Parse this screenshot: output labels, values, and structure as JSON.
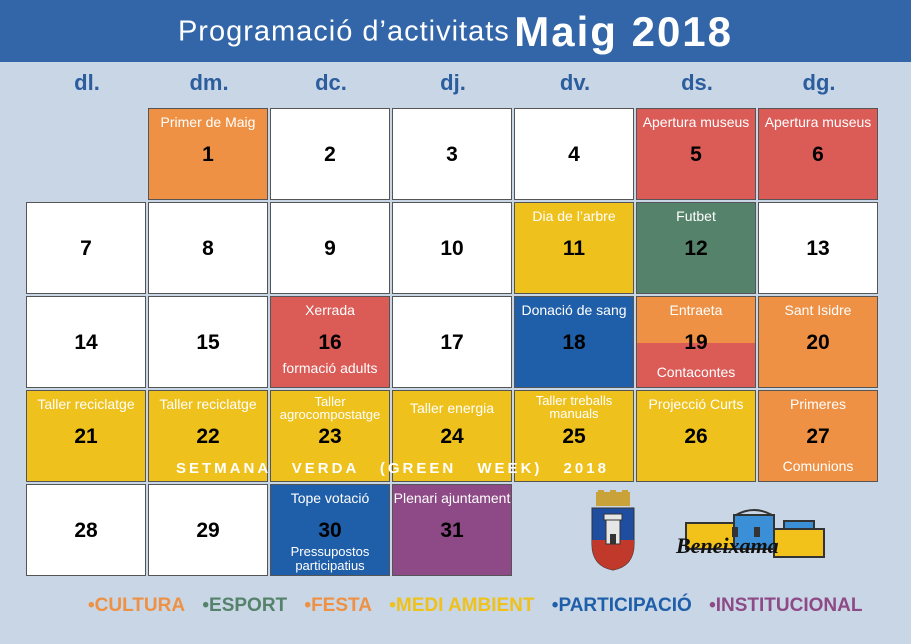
{
  "header": {
    "title_part1": "Programació d’activitats",
    "title_part2": "Maig 2018"
  },
  "weekdays": [
    "dl.",
    "dm.",
    "dc.",
    "dj.",
    "dv.",
    "ds.",
    "dg."
  ],
  "colors": {
    "cultura": "#ee9144",
    "esport": "#55826b",
    "festa": "#ee9144",
    "medi_ambient": "#eec11c",
    "participacio": "#1f5ea8",
    "institucional": "#8d4a86",
    "white": "#ffffff",
    "red": "#db5b57"
  },
  "days": [
    {
      "num": "1",
      "label": "Primer de Maig",
      "label2": ""
    },
    {
      "num": "2",
      "label": "",
      "label2": ""
    },
    {
      "num": "3",
      "label": "",
      "label2": ""
    },
    {
      "num": "4",
      "label": "",
      "label2": ""
    },
    {
      "num": "5",
      "label": "Apertura museus",
      "label2": ""
    },
    {
      "num": "6",
      "label": "Apertura museus",
      "label2": ""
    },
    {
      "num": "7",
      "label": "",
      "label2": ""
    },
    {
      "num": "8",
      "label": "",
      "label2": ""
    },
    {
      "num": "9",
      "label": "",
      "label2": ""
    },
    {
      "num": "10",
      "label": "",
      "label2": ""
    },
    {
      "num": "11",
      "label": "Dia de l’arbre",
      "label2": ""
    },
    {
      "num": "12",
      "label": "Futbet",
      "label2": ""
    },
    {
      "num": "13",
      "label": "",
      "label2": ""
    },
    {
      "num": "14",
      "label": "",
      "label2": ""
    },
    {
      "num": "15",
      "label": "",
      "label2": ""
    },
    {
      "num": "16",
      "label": "Xerrada",
      "label2": "formació adults"
    },
    {
      "num": "17",
      "label": "",
      "label2": ""
    },
    {
      "num": "18",
      "label": "Donació de sang",
      "label2": ""
    },
    {
      "num": "19",
      "label": "Entraeta",
      "label2": "Contacontes"
    },
    {
      "num": "20",
      "label": "Sant Isidre",
      "label2": ""
    },
    {
      "num": "21",
      "label": "Taller reciclatge",
      "label2": ""
    },
    {
      "num": "22",
      "label": "Taller reciclatge",
      "label2": ""
    },
    {
      "num": "23",
      "label": "Taller agrocompostatge",
      "label2": ""
    },
    {
      "num": "24",
      "label": "Taller energia",
      "label2": ""
    },
    {
      "num": "25",
      "label": "Taller treballs manuals",
      "label2": ""
    },
    {
      "num": "26",
      "label": "Projecció Curts",
      "label2": ""
    },
    {
      "num": "27",
      "label": "Primeres",
      "label2": "Comunions"
    },
    {
      "num": "28",
      "label": "",
      "label2": ""
    },
    {
      "num": "29",
      "label": "",
      "label2": ""
    },
    {
      "num": "30",
      "label": "Tope votació",
      "label2": "Pressupostos participatius"
    },
    {
      "num": "31",
      "label": "Plenari ajuntament",
      "label2": ""
    }
  ],
  "green_week": "SETMANA VERDA (GREEN WEEK) 2018",
  "logo_text": "Beneixama",
  "legend": [
    "CULTURA",
    "ESPORT",
    "FESTA",
    "MEDI AMBIENT",
    "PARTICIPACIÓ",
    "INSTITUCIONAL"
  ]
}
